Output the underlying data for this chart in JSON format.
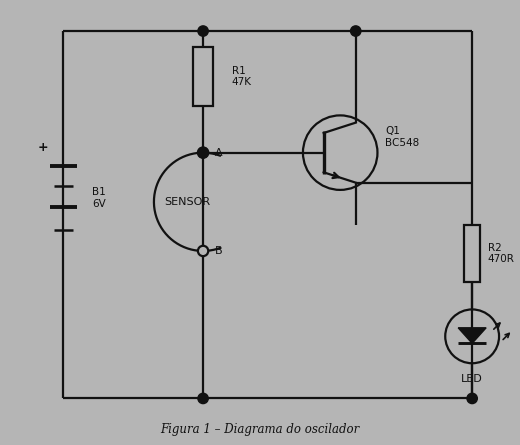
{
  "bg_color": "#b5b5b5",
  "line_color": "#111111",
  "title": "Figura 1 – Diagrama do oscilador",
  "title_fontsize": 8.5,
  "labels": {
    "R1": "R1\n47K",
    "R2": "R2\n470R",
    "Q1": "Q1\nBC548",
    "B1": "B1\n6V",
    "LED": "LED",
    "SENSOR": "SENSOR",
    "A": "A",
    "B": "B",
    "plus": "+"
  }
}
